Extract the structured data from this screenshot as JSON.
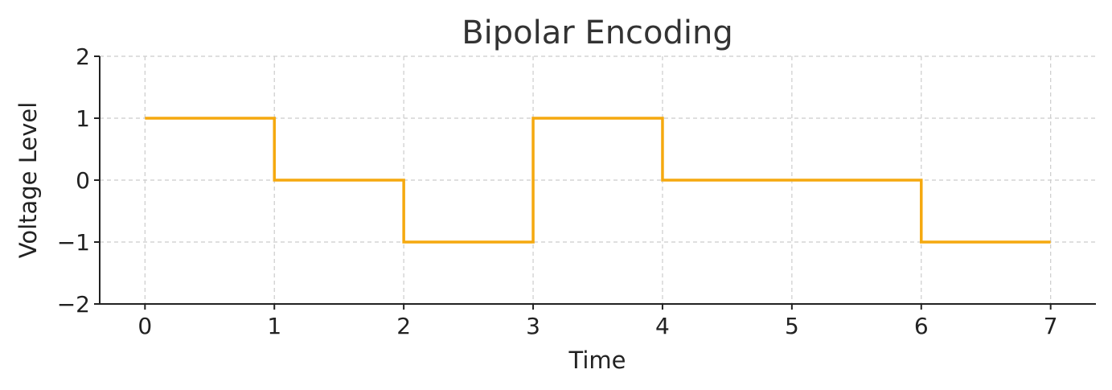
{
  "chart_data": {
    "type": "line",
    "step": "post",
    "title": "Bipolar Encoding",
    "xlabel": "Time",
    "ylabel": "Voltage Level",
    "xlim": [
      -0.35,
      7.35
    ],
    "ylim": [
      -2,
      2
    ],
    "grid": true,
    "x_ticks": [
      0,
      1,
      2,
      3,
      4,
      5,
      6,
      7
    ],
    "x_tick_labels": [
      "0",
      "1",
      "2",
      "3",
      "4",
      "5",
      "6",
      "7"
    ],
    "y_ticks": [
      2,
      1,
      0,
      -1,
      -2
    ],
    "y_tick_labels": [
      "2",
      "1",
      "0",
      "−1",
      "−2"
    ],
    "series": [
      {
        "color": "#f5a90f",
        "x": [
          0,
          1,
          2,
          3,
          4,
          5,
          6,
          7
        ],
        "y": [
          1,
          0,
          -1,
          1,
          0,
          0,
          -1,
          -1
        ]
      }
    ]
  }
}
